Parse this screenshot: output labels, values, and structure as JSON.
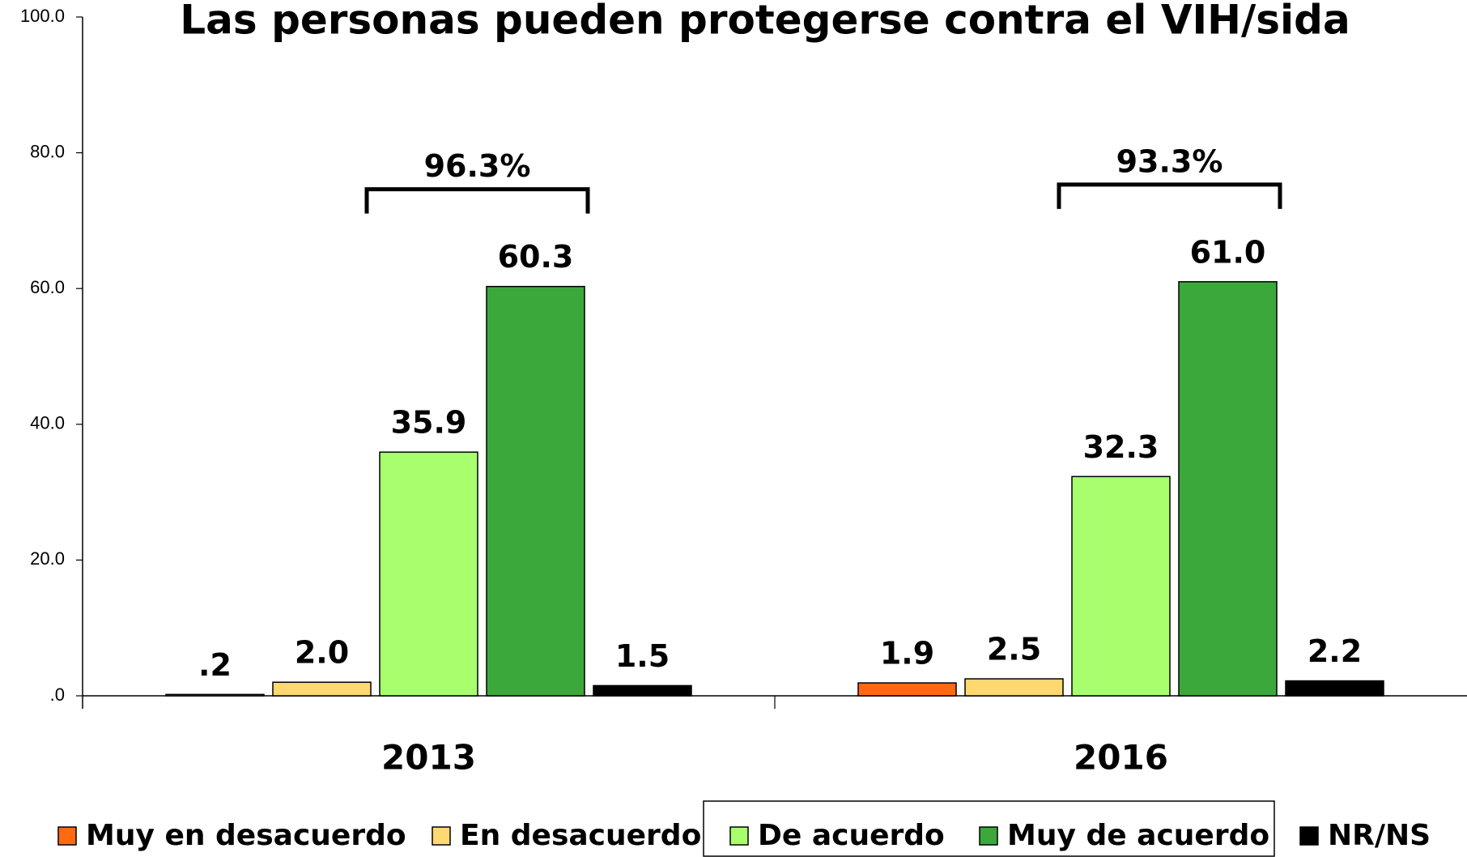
{
  "chart_data": {
    "type": "bar",
    "title": "Las personas pueden protegerse contra el VIH/sida",
    "categories": [
      "2013",
      "2016"
    ],
    "series": [
      {
        "name": "Muy en desacuerdo",
        "color": "#ff6a0f",
        "values": [
          0.2,
          1.9
        ],
        "value_labels": [
          ".2",
          "1.9"
        ]
      },
      {
        "name": "En desacuerdo",
        "color": "#ffd870",
        "values": [
          2.0,
          2.5
        ],
        "value_labels": [
          "2.0",
          "2.5"
        ]
      },
      {
        "name": "De acuerdo",
        "color": "#a8ff6e",
        "values": [
          35.9,
          32.3
        ],
        "value_labels": [
          "35.9",
          "32.3"
        ]
      },
      {
        "name": "Muy de acuerdo",
        "color": "#3ba83b",
        "values": [
          60.3,
          61.0
        ],
        "value_labels": [
          "60.3",
          "61.0"
        ]
      },
      {
        "name": "NR/NS",
        "color": "#000000",
        "values": [
          1.5,
          2.2
        ],
        "value_labels": [
          "1.5",
          "2.2"
        ]
      }
    ],
    "annotations": [
      "96.3%",
      "93.3%"
    ],
    "ylim": [
      0,
      100
    ],
    "yticks": [
      {
        "value": 0,
        "label": ".0"
      },
      {
        "value": 20,
        "label": "20.0"
      },
      {
        "value": 40,
        "label": "40.0"
      },
      {
        "value": 60,
        "label": "60.0"
      },
      {
        "value": 80,
        "label": "80.0"
      },
      {
        "value": 100,
        "label": "100.0"
      }
    ]
  }
}
